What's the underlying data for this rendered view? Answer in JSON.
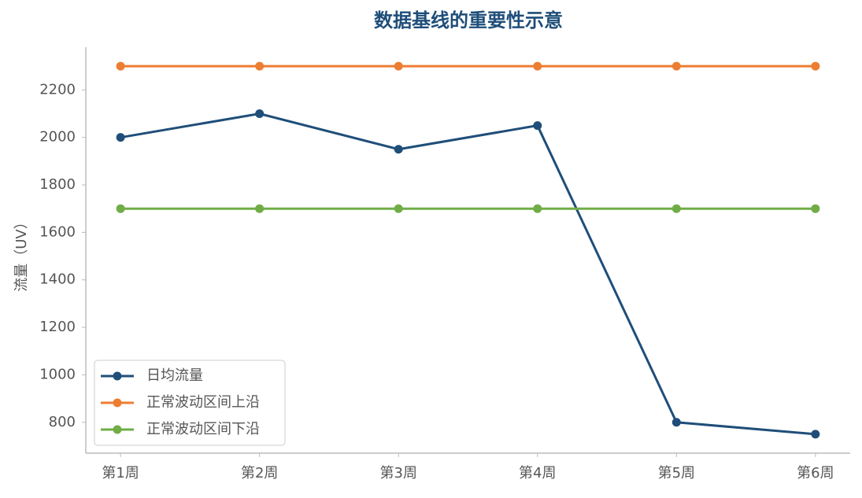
{
  "chart_data": {
    "type": "line",
    "title": "数据基线的重要性示意",
    "ylabel": "流量（UV）",
    "categories": [
      "第1周",
      "第2周",
      "第3周",
      "第4周",
      "第5周",
      "第6周"
    ],
    "series": [
      {
        "name": "日均流量",
        "color": "#1f4e79",
        "values": [
          2000,
          2100,
          1950,
          2050,
          800,
          750
        ]
      },
      {
        "name": "正常波动区间上沿",
        "color": "#ed7d31",
        "values": [
          2300,
          2300,
          2300,
          2300,
          2300,
          2300
        ]
      },
      {
        "name": "正常波动区间下沿",
        "color": "#70ad47",
        "values": [
          1700,
          1700,
          1700,
          1700,
          1700,
          1700
        ]
      }
    ],
    "ylim": [
      670,
      2380
    ],
    "yticks": [
      800,
      1000,
      1200,
      1400,
      1600,
      1800,
      2000,
      2200
    ],
    "grid": false,
    "legend": "lower left"
  }
}
